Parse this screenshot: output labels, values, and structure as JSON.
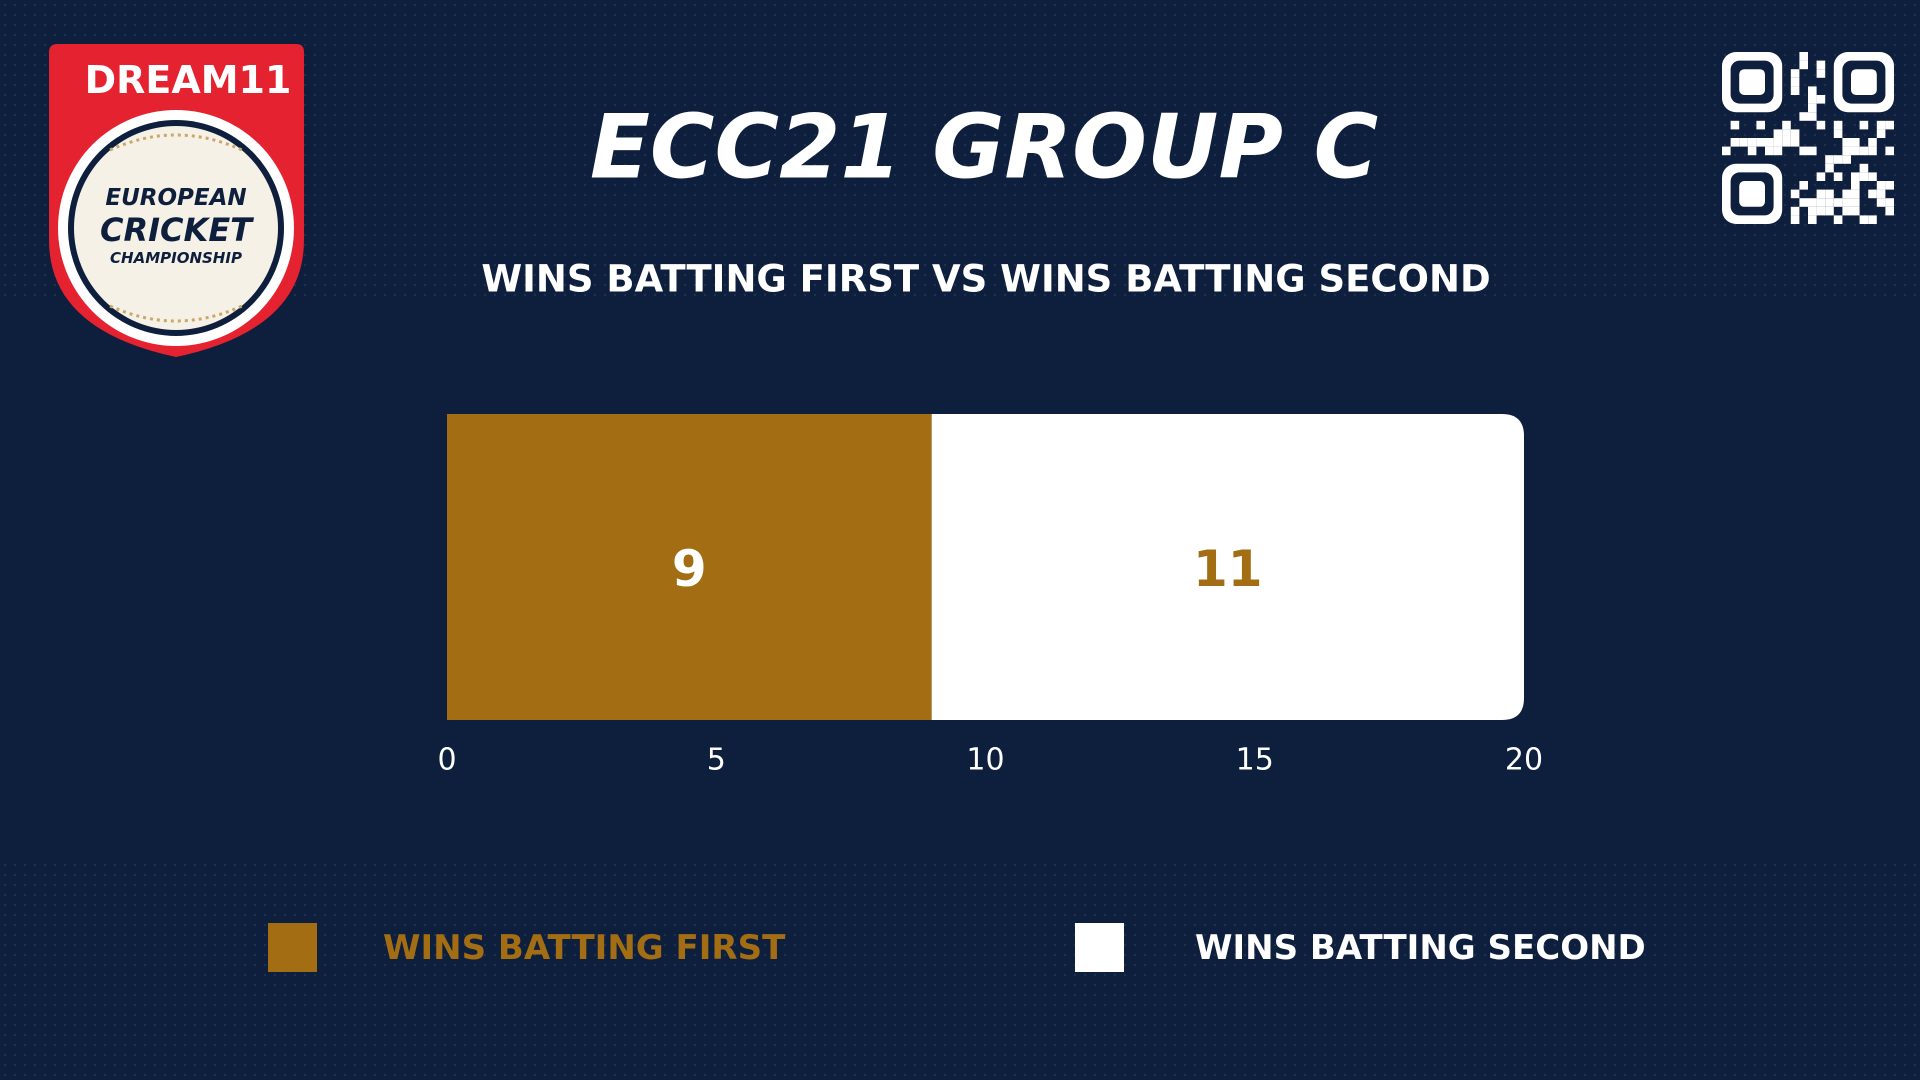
{
  "logo": {
    "brand": "DREAM11",
    "lines": [
      "EUROPEAN",
      "CRICKET",
      "CHAMPIONSHIP"
    ]
  },
  "chart_data": {
    "type": "stacked-hbar",
    "title": "ECC21 GROUP C",
    "subtitle": "WINS BATTING FIRST VS WINS BATTING SECOND",
    "categories": [
      null
    ],
    "series": [
      {
        "name": "WINS BATTING FIRST",
        "color": "#a36d14",
        "label_color": "#ffffff",
        "values": [
          9
        ]
      },
      {
        "name": "WINS BATTING SECOND",
        "color": "#ffffff",
        "label_color": "#a36d14",
        "values": [
          11
        ]
      }
    ],
    "xlim": [
      0,
      20
    ],
    "xticks": [
      0,
      5,
      10,
      15,
      20
    ],
    "grid": false
  }
}
